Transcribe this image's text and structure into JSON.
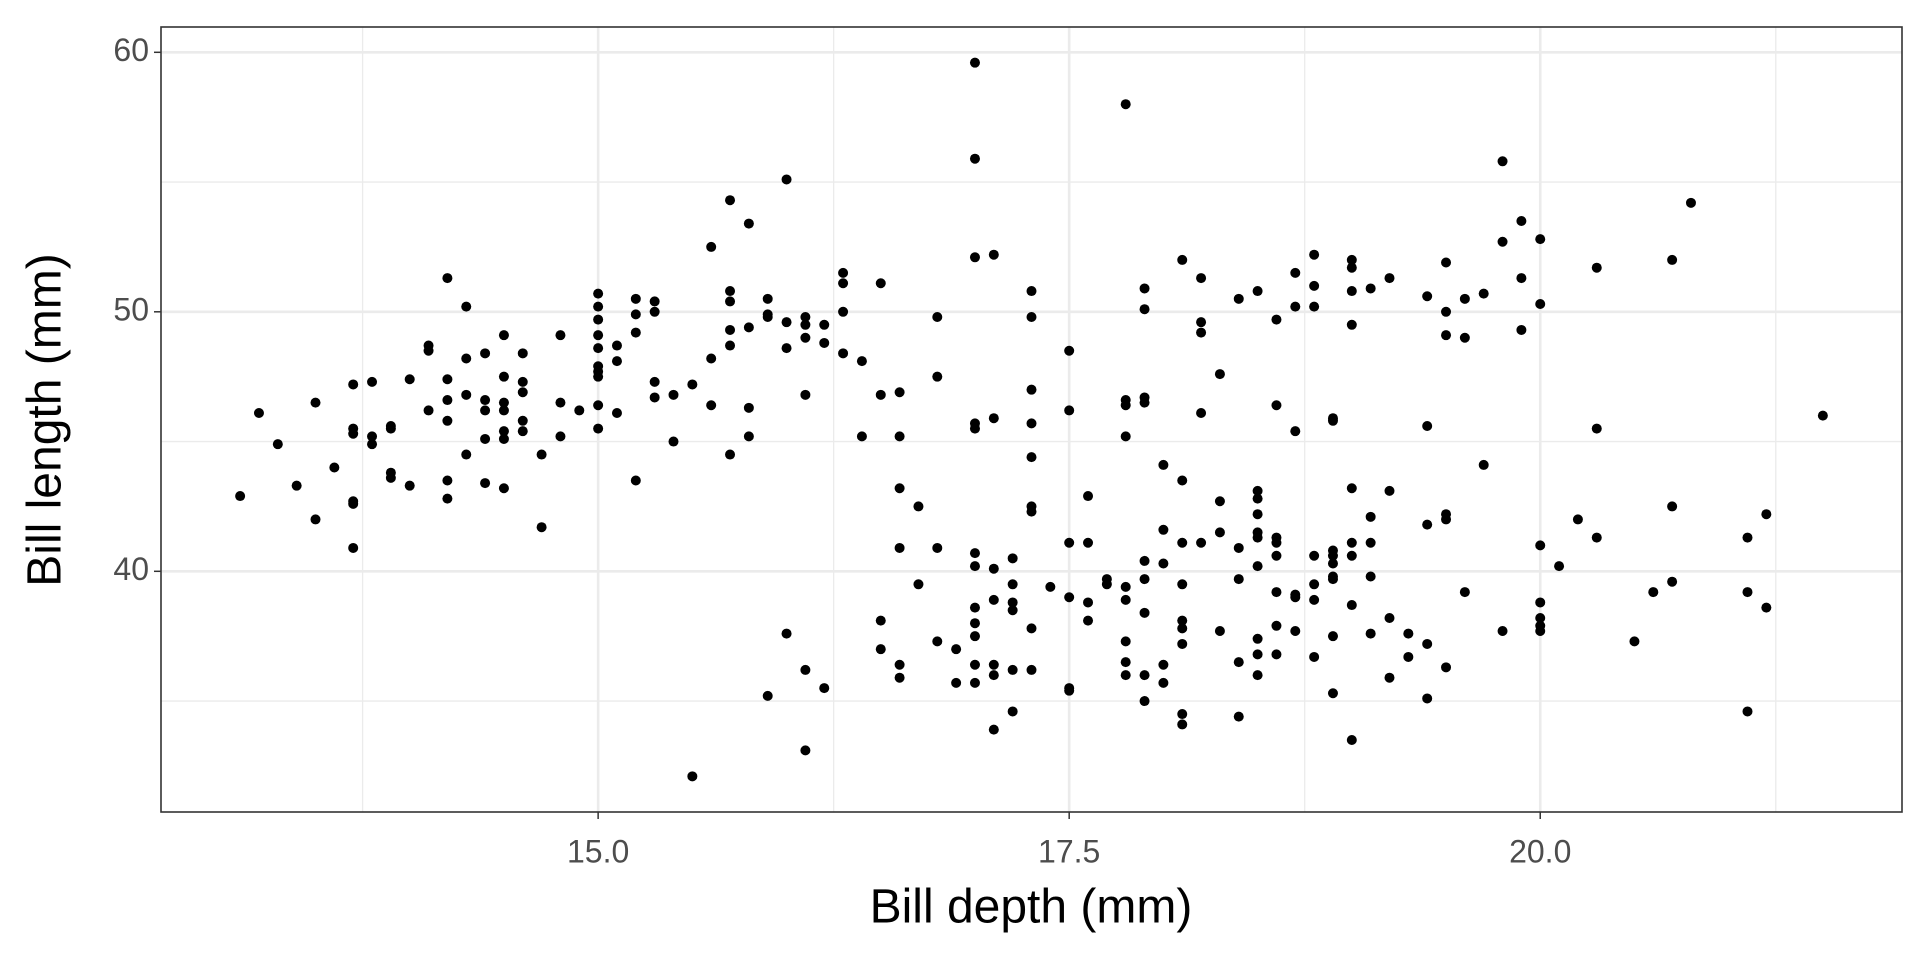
{
  "chart_data": {
    "type": "scatter",
    "xlabel": "Bill depth (mm)",
    "ylabel": "Bill length (mm)",
    "color": "#000000",
    "grid": true,
    "xlim": [
      12.68,
      21.92
    ],
    "ylim": [
      30.725,
      60.975
    ],
    "xticks": [
      {
        "value": 15,
        "label": "15.0"
      },
      {
        "value": 17.5,
        "label": "17.5"
      },
      {
        "value": 20,
        "label": "20.0"
      }
    ],
    "yticks": [
      40,
      50,
      60
    ],
    "x_minor_grid": [
      13.75,
      16.25,
      18.75,
      21.25
    ],
    "y_minor_grid": [
      35,
      45,
      55
    ],
    "x": [
      13.1,
      13.2,
      13.3,
      13.4,
      13.5,
      13.5,
      13.6,
      13.7,
      13.7,
      13.7,
      13.7,
      13.7,
      13.7,
      13.8,
      13.8,
      13.8,
      13.9,
      13.9,
      13.9,
      13.9,
      14.0,
      14.0,
      14.1,
      14.1,
      14.1,
      14.2,
      14.2,
      14.2,
      14.2,
      14.2,
      14.2,
      14.3,
      14.3,
      14.3,
      14.3,
      14.4,
      14.4,
      14.4,
      14.4,
      14.4,
      14.5,
      14.5,
      14.5,
      14.5,
      14.5,
      14.5,
      14.5,
      14.6,
      14.6,
      14.6,
      14.6,
      14.6,
      14.7,
      14.7,
      14.8,
      14.8,
      14.8,
      14.9,
      15.0,
      15.0,
      15.0,
      15.0,
      15.0,
      15.0,
      15.0,
      15.0,
      15.0,
      15.0,
      15.1,
      15.1,
      15.1,
      15.2,
      15.2,
      15.2,
      15.2,
      15.3,
      15.3,
      15.3,
      15.3,
      15.4,
      15.4,
      15.5,
      15.5,
      15.6,
      15.6,
      15.6,
      15.7,
      15.7,
      15.7,
      15.7,
      15.7,
      15.7,
      15.8,
      15.8,
      15.8,
      15.8,
      15.9,
      15.9,
      15.9,
      15.9,
      16.0,
      16.0,
      16.0,
      16.0,
      16.1,
      16.1,
      16.1,
      16.1,
      16.1,
      16.1,
      16.2,
      16.2,
      16.2,
      16.3,
      16.3,
      16.3,
      16.3,
      16.4,
      16.4,
      16.5,
      16.5,
      16.5,
      16.5,
      16.6,
      16.6,
      16.6,
      16.6,
      16.6,
      16.6,
      16.7,
      16.7,
      16.8,
      16.8,
      16.8,
      16.8,
      16.9,
      16.9,
      17.0,
      17.0,
      17.0,
      17.0,
      17.0,
      17.0,
      17.0,
      17.0,
      17.0,
      17.0,
      17.0,
      17.0,
      17.1,
      17.1,
      17.1,
      17.1,
      17.1,
      17.1,
      17.1,
      17.2,
      17.2,
      17.2,
      17.2,
      17.2,
      17.2,
      17.3,
      17.3,
      17.3,
      17.3,
      17.3,
      17.3,
      17.3,
      17.3,
      17.3,
      17.4,
      17.5,
      17.5,
      17.5,
      17.5,
      17.5,
      17.5,
      17.6,
      17.6,
      17.6,
      17.6,
      17.7,
      17.7,
      17.8,
      17.8,
      17.8,
      17.8,
      17.8,
      17.8,
      17.8,
      17.8,
      17.8,
      17.9,
      17.9,
      17.9,
      17.9,
      17.9,
      17.9,
      17.9,
      17.9,
      17.9,
      18.0,
      18.0,
      18.0,
      18.0,
      18.0,
      18.1,
      18.1,
      18.1,
      18.1,
      18.1,
      18.1,
      18.1,
      18.1,
      18.1,
      18.2,
      18.2,
      18.2,
      18.2,
      18.2,
      18.3,
      18.3,
      18.3,
      18.3,
      18.4,
      18.4,
      18.4,
      18.4,
      18.4,
      18.5,
      18.5,
      18.5,
      18.5,
      18.5,
      18.5,
      18.5,
      18.5,
      18.5,
      18.5,
      18.6,
      18.6,
      18.6,
      18.6,
      18.6,
      18.6,
      18.6,
      18.6,
      18.7,
      18.7,
      18.7,
      18.7,
      18.7,
      18.7,
      18.8,
      18.8,
      18.8,
      18.8,
      18.8,
      18.8,
      18.8,
      18.9,
      18.9,
      18.9,
      18.9,
      18.9,
      18.9,
      18.9,
      18.9,
      18.9,
      19.0,
      19.0,
      19.0,
      19.0,
      19.0,
      19.0,
      19.0,
      19.0,
      19.0,
      19.1,
      19.1,
      19.1,
      19.1,
      19.1,
      19.2,
      19.2,
      19.2,
      19.2,
      19.3,
      19.3,
      19.4,
      19.4,
      19.4,
      19.4,
      19.4,
      19.5,
      19.5,
      19.5,
      19.5,
      19.5,
      19.5,
      19.6,
      19.6,
      19.6,
      19.7,
      19.7,
      19.8,
      19.8,
      19.8,
      19.9,
      19.9,
      19.9,
      20.0,
      20.0,
      20.0,
      20.0,
      20.0,
      20.0,
      20.0,
      20.1,
      20.2,
      20.3,
      20.3,
      20.3,
      20.5,
      20.6,
      20.7,
      20.7,
      20.7,
      20.8,
      21.1,
      21.1,
      21.1,
      21.2,
      21.2,
      21.5
    ],
    "values": [
      42.9,
      46.1,
      44.9,
      43.3,
      46.5,
      42.0,
      44.0,
      47.2,
      45.5,
      45.3,
      42.7,
      42.6,
      40.9,
      47.3,
      45.2,
      44.9,
      45.6,
      45.5,
      43.8,
      43.6,
      47.4,
      43.3,
      48.7,
      48.5,
      46.2,
      51.3,
      47.4,
      46.6,
      45.8,
      43.5,
      42.8,
      50.2,
      48.2,
      46.8,
      44.5,
      48.4,
      46.6,
      46.2,
      45.1,
      43.4,
      49.1,
      47.5,
      46.5,
      46.2,
      45.4,
      45.1,
      43.2,
      48.4,
      47.3,
      46.9,
      45.8,
      45.4,
      44.5,
      41.7,
      49.1,
      46.5,
      45.2,
      46.2,
      50.7,
      50.2,
      49.7,
      49.1,
      48.6,
      47.9,
      47.7,
      47.5,
      46.4,
      45.5,
      48.7,
      48.1,
      46.1,
      50.5,
      49.9,
      49.2,
      43.5,
      50.4,
      50.0,
      47.3,
      46.7,
      46.8,
      45.0,
      47.2,
      32.1,
      52.5,
      48.2,
      46.4,
      54.3,
      50.8,
      50.4,
      49.3,
      48.7,
      44.5,
      53.4,
      49.4,
      46.3,
      45.2,
      50.5,
      49.9,
      49.8,
      35.2,
      55.1,
      49.6,
      48.6,
      37.6,
      49.8,
      49.5,
      49.0,
      46.8,
      36.2,
      33.1,
      49.5,
      48.8,
      35.5,
      51.5,
      51.1,
      50.0,
      48.4,
      48.1,
      45.2,
      51.1,
      46.8,
      38.1,
      37.0,
      46.9,
      45.2,
      43.2,
      40.9,
      36.4,
      35.9,
      42.5,
      39.5,
      49.8,
      47.5,
      40.9,
      37.3,
      37.0,
      35.7,
      59.6,
      55.9,
      52.1,
      45.7,
      45.5,
      40.7,
      40.2,
      38.6,
      38.0,
      37.5,
      36.4,
      35.7,
      52.2,
      45.9,
      40.1,
      38.9,
      36.4,
      36.0,
      33.9,
      40.5,
      39.5,
      38.8,
      38.5,
      36.2,
      34.6,
      50.8,
      49.8,
      47.0,
      45.7,
      44.4,
      42.5,
      42.3,
      37.8,
      36.2,
      39.4,
      48.5,
      46.2,
      41.1,
      39.0,
      35.5,
      35.4,
      42.9,
      41.1,
      38.8,
      38.1,
      39.7,
      39.5,
      58.0,
      46.6,
      46.4,
      45.2,
      39.4,
      38.9,
      37.3,
      36.5,
      36.0,
      50.9,
      50.1,
      46.7,
      46.5,
      40.4,
      39.7,
      38.4,
      36.0,
      35.0,
      44.1,
      41.6,
      40.3,
      36.4,
      35.7,
      52.0,
      43.5,
      41.1,
      39.5,
      38.1,
      37.8,
      37.2,
      34.5,
      34.1,
      51.3,
      49.6,
      49.2,
      46.1,
      41.1,
      47.6,
      42.7,
      41.5,
      37.7,
      50.5,
      40.9,
      39.7,
      36.5,
      34.4,
      50.8,
      43.1,
      42.8,
      42.2,
      41.5,
      41.3,
      40.2,
      37.4,
      36.8,
      36.0,
      49.7,
      46.4,
      41.3,
      41.1,
      40.6,
      39.2,
      37.9,
      36.8,
      51.5,
      50.2,
      45.4,
      39.1,
      39.0,
      37.7,
      52.2,
      51.0,
      50.2,
      40.6,
      39.5,
      38.9,
      36.7,
      45.9,
      45.8,
      40.8,
      40.6,
      40.3,
      39.8,
      39.7,
      37.5,
      35.3,
      52.0,
      51.7,
      50.8,
      49.5,
      43.2,
      41.1,
      40.6,
      38.7,
      33.5,
      50.9,
      42.1,
      41.1,
      39.8,
      37.6,
      51.3,
      43.1,
      38.2,
      35.9,
      37.6,
      36.7,
      50.6,
      45.6,
      41.8,
      37.2,
      35.1,
      51.9,
      50.0,
      49.1,
      42.2,
      42.0,
      36.3,
      50.5,
      49.0,
      39.2,
      50.7,
      44.1,
      55.8,
      52.7,
      37.7,
      53.5,
      51.3,
      49.3,
      52.8,
      50.3,
      41.0,
      38.8,
      38.2,
      37.9,
      37.7,
      40.2,
      42.0,
      51.7,
      45.5,
      41.3,
      37.3,
      39.2,
      52.0,
      42.5,
      39.6,
      54.2,
      41.3,
      39.2,
      34.6,
      42.2,
      38.6,
      46.0
    ]
  }
}
